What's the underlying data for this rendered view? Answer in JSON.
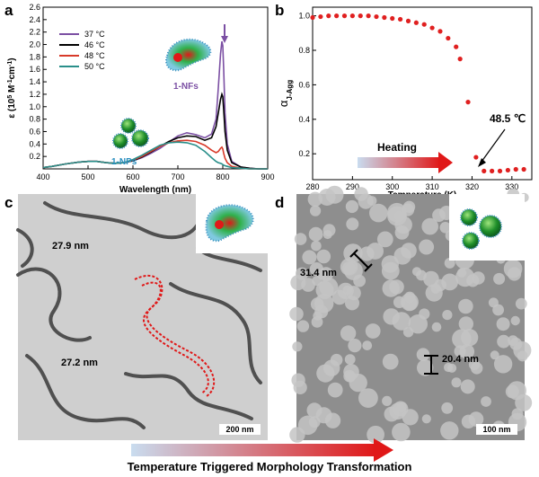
{
  "panels": {
    "a": "a",
    "b": "b",
    "c": "c",
    "d": "d"
  },
  "chart_data": [
    {
      "type": "line",
      "panel": "a",
      "xlabel": "Wavelength (nm)",
      "ylabel_main": "ε (10",
      "ylabel_sup": "5",
      "ylabel_mid": " M",
      "ylabel_sup2": "-1",
      "ylabel_end": "cm",
      "ylabel_sup3": "-1",
      "ylabel_close": ")",
      "xlim": [
        400,
        900
      ],
      "ylim": [
        0,
        2.6
      ],
      "xticks": [
        "400",
        "500",
        "600",
        "700",
        "800",
        "900"
      ],
      "yticks": [
        "0.2",
        "0.4",
        "0.6",
        "0.8",
        "1.0",
        "1.2",
        "1.4",
        "1.6",
        "1.8",
        "2.0",
        "2.2",
        "2.4",
        "2.6"
      ],
      "legend_position": "top-left",
      "series": [
        {
          "name": "37 °C",
          "color": "#7b4fa3",
          "x": [
            400,
            420,
            450,
            480,
            500,
            520,
            540,
            560,
            580,
            600,
            620,
            640,
            660,
            680,
            700,
            720,
            740,
            760,
            775,
            785,
            790,
            795,
            798,
            800,
            802,
            805,
            810,
            820,
            840,
            860,
            880,
            900
          ],
          "y": [
            0.02,
            0.04,
            0.08,
            0.11,
            0.12,
            0.12,
            0.1,
            0.09,
            0.1,
            0.13,
            0.18,
            0.25,
            0.33,
            0.43,
            0.53,
            0.58,
            0.55,
            0.5,
            0.56,
            0.8,
            1.3,
            1.85,
            2.05,
            1.98,
            1.6,
            0.9,
            0.4,
            0.12,
            0.03,
            0.01,
            0.0,
            0.0
          ]
        },
        {
          "name": "46 °C",
          "color": "#000000",
          "x": [
            400,
            420,
            450,
            480,
            500,
            520,
            540,
            560,
            580,
            600,
            620,
            640,
            660,
            680,
            700,
            720,
            740,
            760,
            775,
            785,
            790,
            795,
            798,
            800,
            802,
            805,
            810,
            820,
            840,
            860,
            880,
            900
          ],
          "y": [
            0.02,
            0.04,
            0.08,
            0.11,
            0.12,
            0.12,
            0.1,
            0.09,
            0.1,
            0.13,
            0.19,
            0.27,
            0.36,
            0.44,
            0.5,
            0.53,
            0.52,
            0.46,
            0.5,
            0.68,
            0.9,
            1.12,
            1.2,
            1.16,
            0.95,
            0.6,
            0.3,
            0.1,
            0.03,
            0.01,
            0.0,
            0.0
          ]
        },
        {
          "name": "48 °C",
          "color": "#d83a2a",
          "x": [
            400,
            420,
            450,
            480,
            500,
            520,
            540,
            560,
            580,
            600,
            620,
            640,
            660,
            680,
            700,
            720,
            740,
            760,
            775,
            785,
            790,
            795,
            798,
            800,
            802,
            805,
            810,
            820,
            840,
            860,
            880,
            900
          ],
          "y": [
            0.02,
            0.04,
            0.08,
            0.11,
            0.12,
            0.12,
            0.1,
            0.09,
            0.1,
            0.14,
            0.2,
            0.28,
            0.36,
            0.42,
            0.45,
            0.46,
            0.44,
            0.38,
            0.3,
            0.26,
            0.28,
            0.33,
            0.35,
            0.32,
            0.25,
            0.17,
            0.1,
            0.04,
            0.01,
            0.0,
            0.0,
            0.0
          ]
        },
        {
          "name": "50 °C",
          "color": "#2a8f8a",
          "x": [
            400,
            420,
            450,
            480,
            500,
            520,
            540,
            560,
            580,
            600,
            620,
            640,
            660,
            680,
            700,
            720,
            740,
            760,
            775,
            785,
            790,
            795,
            798,
            800,
            802,
            805,
            810,
            820,
            840,
            860,
            880,
            900
          ],
          "y": [
            0.02,
            0.04,
            0.08,
            0.11,
            0.12,
            0.12,
            0.1,
            0.09,
            0.1,
            0.15,
            0.22,
            0.3,
            0.38,
            0.42,
            0.43,
            0.42,
            0.38,
            0.28,
            0.18,
            0.12,
            0.1,
            0.09,
            0.08,
            0.07,
            0.06,
            0.05,
            0.04,
            0.02,
            0.01,
            0.0,
            0.0,
            0.0
          ]
        }
      ],
      "annotations": [
        "1-NFs",
        "1-NPs"
      ]
    },
    {
      "type": "scatter",
      "panel": "b",
      "xlabel": "Temperature (K)",
      "ylabel_main": "α",
      "ylabel_sub": "J-Agg",
      "xlim": [
        280,
        335
      ],
      "ylim": [
        0.05,
        1.05
      ],
      "xticks": [
        "280",
        "290",
        "300",
        "310",
        "320",
        "330"
      ],
      "yticks": [
        "0.2",
        "0.4",
        "0.6",
        "0.8",
        "1.0"
      ],
      "color": "#e02020",
      "series": [
        {
          "x": [
            280,
            282,
            284,
            286,
            288,
            290,
            292,
            294,
            296,
            298,
            300,
            302,
            304,
            306,
            308,
            310,
            312,
            314,
            316,
            317,
            319,
            321,
            323,
            325,
            327,
            329,
            331,
            333
          ],
          "y": [
            0.99,
            0.995,
            1.0,
            1.0,
            1.0,
            1.0,
            1.0,
            1.0,
            0.995,
            0.99,
            0.985,
            0.98,
            0.97,
            0.96,
            0.95,
            0.93,
            0.91,
            0.87,
            0.82,
            0.75,
            0.5,
            0.18,
            0.1,
            0.1,
            0.1,
            0.105,
            0.11,
            0.11
          ]
        }
      ],
      "annotations": [
        "48.5 ℃",
        "Heating"
      ]
    }
  ],
  "panel_c": {
    "labels": [
      "27.9 nm",
      "27.2 nm"
    ],
    "scale_bar": "200 nm"
  },
  "panel_d": {
    "labels": [
      "31.4 nm",
      "20.4 nm"
    ],
    "scale_bar": "100 nm"
  },
  "caption": "Temperature Triggered Morphology Transformation"
}
